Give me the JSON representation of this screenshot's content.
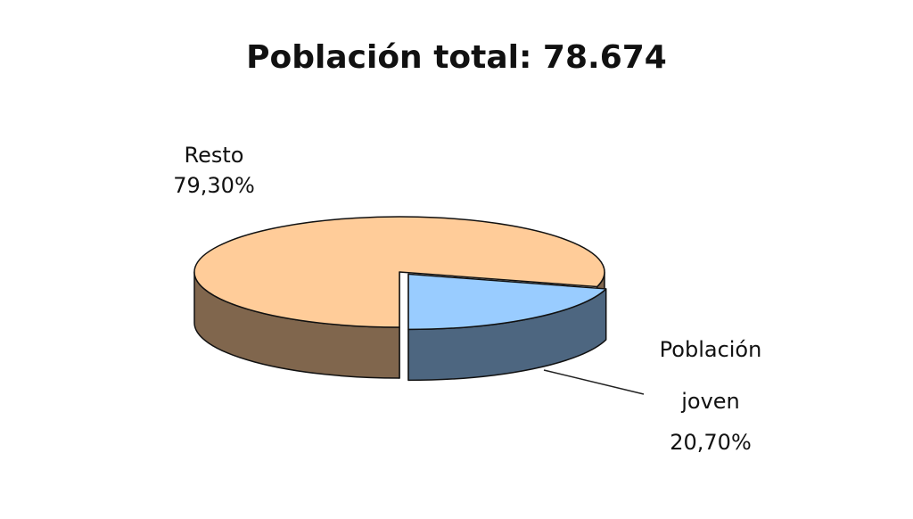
{
  "chart_data": {
    "type": "pie",
    "title": "Población total: 78.674",
    "categories": [
      "Resto",
      "Población joven"
    ],
    "values": [
      79.3,
      20.7
    ],
    "value_labels": [
      "79,30%",
      "20,70%"
    ],
    "colors": [
      "#ffcc99",
      "#99ccff"
    ]
  }
}
